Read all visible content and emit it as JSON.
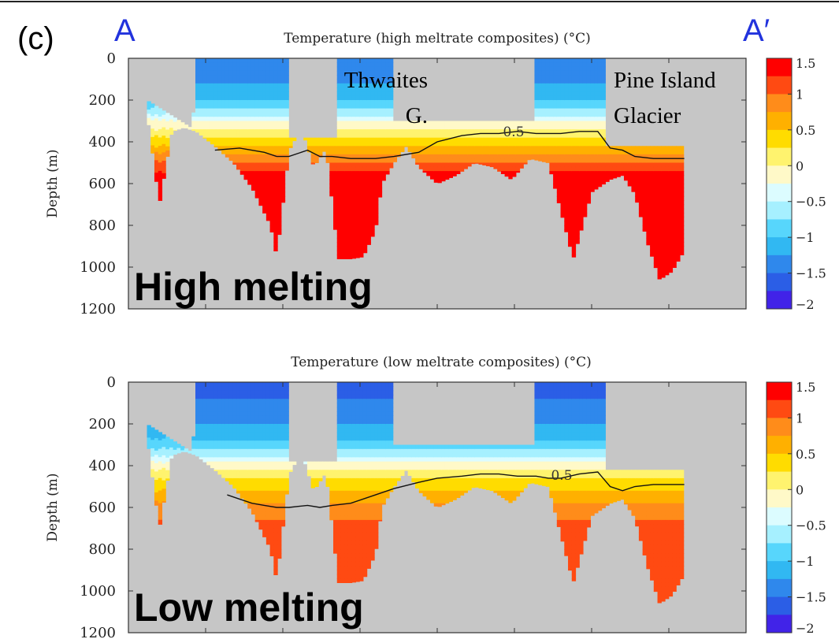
{
  "panel_label": "(c)",
  "section_start_label": "A",
  "section_end_label": "A′",
  "accent_color": "#2233dd",
  "colorbar": {
    "tick_labels": [
      "1.5",
      "1",
      "0.5",
      "0",
      "−0.5",
      "−1",
      "−1.5",
      "−2"
    ],
    "colors": [
      "#ff0000",
      "#ff4a12",
      "#ff8c1a",
      "#ffb000",
      "#ffdc00",
      "#fff36e",
      "#fff9c8",
      "#dcfcff",
      "#a6f0ff",
      "#57d6fc",
      "#31b8f2",
      "#2f88ec",
      "#2b5ee6",
      "#4123e8"
    ]
  },
  "chart_data": [
    {
      "type": "heatmap",
      "title": "Temperature (high meltrate composites) (°C)",
      "overlay_text": "High melting",
      "ylabel": "Depth (m)",
      "yticks": [
        "0",
        "200",
        "400",
        "600",
        "800",
        "1000",
        "1200"
      ],
      "ylim": [
        1200,
        0
      ],
      "x_range": [
        0,
        100
      ],
      "contour_label": "0.5",
      "annotations": [
        {
          "name": "thwaites",
          "lines": [
            "Thwaites",
            "G."
          ]
        },
        {
          "name": "pine-island",
          "lines": [
            "Pine Island",
            "Glacier"
          ]
        }
      ],
      "ocean_profile": {
        "x": [
          3,
          5,
          7,
          9,
          11,
          14,
          17,
          20,
          23,
          24,
          26,
          28,
          30,
          32,
          34,
          36,
          38,
          40,
          41,
          43,
          45,
          47,
          50,
          53,
          56,
          59,
          62,
          65,
          68,
          72,
          75,
          78,
          80,
          82,
          84,
          86,
          88,
          90,
          92,
          93.5
        ],
        "bottom": [
          250,
          700,
          350,
          330,
          350,
          420,
          500,
          620,
          800,
          950,
          440,
          330,
          520,
          430,
          960,
          960,
          950,
          820,
          600,
          500,
          420,
          520,
          600,
          560,
          500,
          520,
          580,
          480,
          500,
          960,
          640,
          580,
          560,
          650,
          880,
          1060,
          1020,
          920,
          860,
          800
        ],
        "top_segments": [
          {
            "x": [
              3,
              10
            ],
            "depth": [
              200,
              330
            ]
          },
          {
            "x": [
              10,
              11
            ],
            "depth": [
              330,
              200
            ]
          },
          {
            "x": [
              11,
              26
            ],
            "depth": [
              0,
              0
            ]
          },
          {
            "x": [
              26,
              34
            ],
            "depth": [
              380,
              380
            ]
          },
          {
            "x": [
              34,
              43
            ],
            "depth": [
              0,
              0
            ]
          },
          {
            "x": [
              43,
              66
            ],
            "depth": [
              300,
              300
            ]
          },
          {
            "x": [
              66,
              77
            ],
            "depth": [
              0,
              0
            ]
          },
          {
            "x": [
              77,
              90
            ],
            "depth": [
              420,
              420
            ]
          }
        ]
      },
      "depth_levels": [
        {
          "depth": 0,
          "value": -1.5
        },
        {
          "depth": 100,
          "value": -1.3
        },
        {
          "depth": 200,
          "value": -1.0
        },
        {
          "depth": 260,
          "value": -0.6
        },
        {
          "depth": 300,
          "value": -0.2
        },
        {
          "depth": 340,
          "value": 0.0
        },
        {
          "depth": 380,
          "value": 0.3
        },
        {
          "depth": 420,
          "value": 0.5
        },
        {
          "depth": 470,
          "value": 0.9
        },
        {
          "depth": 530,
          "value": 1.2
        },
        {
          "depth": 600,
          "value": 1.5
        },
        {
          "depth": 1200,
          "value": 1.6
        }
      ],
      "contour_depth": {
        "x": [
          14,
          18,
          22,
          24,
          26,
          29,
          31,
          33,
          36,
          40,
          43,
          47,
          50,
          54,
          57,
          60,
          63,
          66,
          68,
          70,
          73,
          76,
          78,
          80,
          82,
          85,
          88,
          90
        ],
        "depth": [
          440,
          430,
          450,
          470,
          470,
          440,
          470,
          470,
          480,
          480,
          470,
          450,
          400,
          370,
          360,
          360,
          350,
          360,
          360,
          360,
          350,
          350,
          430,
          440,
          470,
          480,
          480,
          480
        ]
      }
    },
    {
      "type": "heatmap",
      "title": "Temperature (low meltrate composites) (°C)",
      "overlay_text": "Low melting",
      "ylabel": "Depth (m)",
      "yticks": [
        "0",
        "200",
        "400",
        "600",
        "800",
        "1000",
        "1200"
      ],
      "ylim": [
        1200,
        0
      ],
      "x_range": [
        0,
        100
      ],
      "contour_label": "0.5",
      "annotations": [],
      "ocean_profile": {
        "x": [
          3,
          5,
          7,
          9,
          11,
          14,
          17,
          20,
          23,
          24,
          26,
          28,
          30,
          32,
          34,
          36,
          38,
          40,
          41,
          43,
          45,
          47,
          50,
          53,
          56,
          59,
          62,
          65,
          68,
          72,
          75,
          78,
          80,
          82,
          84,
          86,
          88,
          90,
          92,
          93.5
        ],
        "bottom": [
          250,
          700,
          350,
          330,
          350,
          420,
          500,
          620,
          800,
          950,
          440,
          330,
          520,
          430,
          960,
          960,
          950,
          820,
          600,
          500,
          420,
          520,
          600,
          560,
          500,
          520,
          580,
          480,
          500,
          960,
          640,
          580,
          560,
          650,
          880,
          1060,
          1020,
          920,
          860,
          800
        ],
        "top_segments": [
          {
            "x": [
              3,
              10
            ],
            "depth": [
              200,
              330
            ]
          },
          {
            "x": [
              10,
              11
            ],
            "depth": [
              330,
              200
            ]
          },
          {
            "x": [
              11,
              26
            ],
            "depth": [
              0,
              0
            ]
          },
          {
            "x": [
              26,
              34
            ],
            "depth": [
              380,
              380
            ]
          },
          {
            "x": [
              34,
              43
            ],
            "depth": [
              0,
              0
            ]
          },
          {
            "x": [
              43,
              66
            ],
            "depth": [
              300,
              300
            ]
          },
          {
            "x": [
              66,
              77
            ],
            "depth": [
              0,
              0
            ]
          },
          {
            "x": [
              77,
              90
            ],
            "depth": [
              420,
              420
            ]
          }
        ]
      },
      "depth_levels": [
        {
          "depth": 0,
          "value": -1.6
        },
        {
          "depth": 150,
          "value": -1.4
        },
        {
          "depth": 250,
          "value": -1.1
        },
        {
          "depth": 330,
          "value": -0.7
        },
        {
          "depth": 380,
          "value": -0.3
        },
        {
          "depth": 420,
          "value": 0.0
        },
        {
          "depth": 470,
          "value": 0.3
        },
        {
          "depth": 520,
          "value": 0.5
        },
        {
          "depth": 580,
          "value": 0.8
        },
        {
          "depth": 650,
          "value": 1.0
        },
        {
          "depth": 760,
          "value": 1.1
        },
        {
          "depth": 1200,
          "value": 1.1
        }
      ],
      "contour_depth": {
        "x": [
          16,
          18,
          20,
          22,
          24,
          26,
          29,
          31,
          33,
          36,
          40,
          43,
          47,
          50,
          54,
          57,
          60,
          63,
          66,
          68,
          70,
          73,
          76,
          78,
          80,
          82,
          85,
          88,
          90
        ],
        "depth": [
          540,
          560,
          580,
          590,
          600,
          600,
          590,
          600,
          590,
          580,
          540,
          510,
          480,
          460,
          450,
          440,
          440,
          450,
          450,
          460,
          460,
          440,
          430,
          500,
          520,
          500,
          490,
          490,
          490
        ]
      }
    }
  ]
}
